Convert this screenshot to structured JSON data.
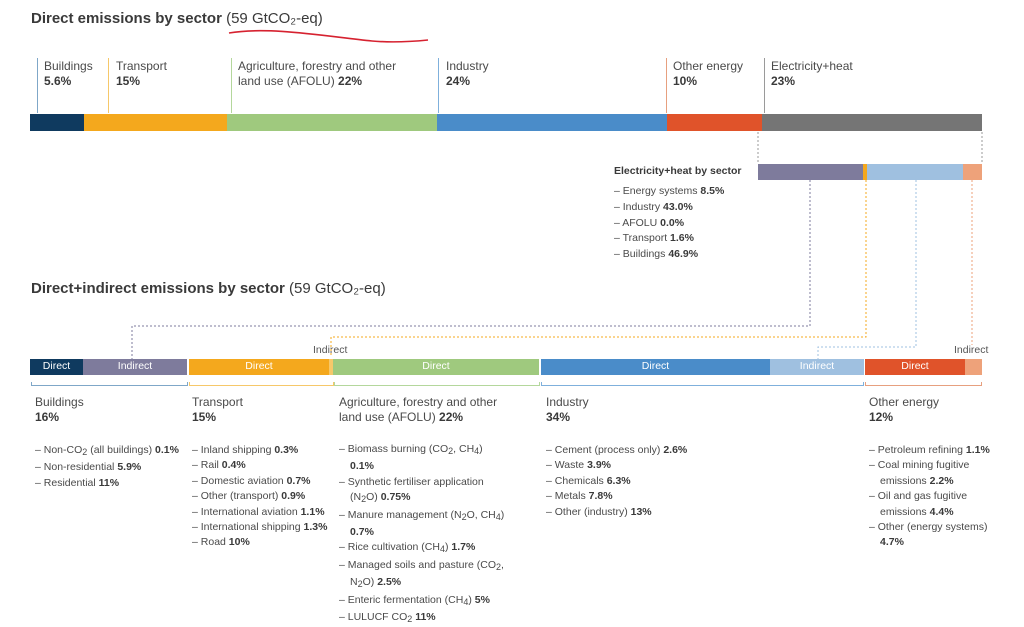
{
  "colors": {
    "buildings": "#0f3a5f",
    "buildings_indirect": "#7e7b9c",
    "transport": "#f4a81d",
    "afolu": "#9fc97e",
    "industry": "#4a8cc9",
    "industry_indirect": "#9fc0e0",
    "other_energy": "#e0532a",
    "other_energy_indirect": "#eea27a",
    "electricity_heat": "#757575",
    "buildings_lead": "#7fa7c8",
    "transport_lead": "#f6c86a",
    "afolu_lead": "#b4d79c",
    "industry_lead": "#7fb0dc",
    "other_energy_lead": "#e7a07f",
    "electricity_lead": "#9a9a9a",
    "annotation": "#d62230"
  },
  "chart_data": [
    {
      "type": "bar",
      "subtype": "stacked-horizontal-100",
      "title": "Direct emissions by sector",
      "title_qualifier": "(59 GtCO₂-eq)",
      "categories": [
        "Buildings",
        "Transport",
        "Agriculture, forestry and other land use (AFOLU)",
        "Industry",
        "Other energy",
        "Electricity+heat"
      ],
      "values": [
        5.6,
        15,
        22,
        24,
        10,
        23
      ],
      "value_labels": [
        "5.6%",
        "15%",
        "22%",
        "24%",
        "10%",
        "23%"
      ],
      "unit": "%"
    },
    {
      "type": "bar",
      "subtype": "stacked-horizontal-100",
      "title": "Electricity+heat by sector",
      "categories": [
        "Energy systems",
        "Industry",
        "AFOLU",
        "Transport",
        "Buildings"
      ],
      "values": [
        8.5,
        43.0,
        0.0,
        1.6,
        46.9
      ],
      "value_labels": [
        "8.5%",
        "43.0%",
        "0.0%",
        "1.6%",
        "46.9%"
      ],
      "unit": "%"
    },
    {
      "type": "bar",
      "subtype": "stacked-horizontal-100",
      "title": "Direct+indirect emissions by sector",
      "title_qualifier": "(59 GtCO₂-eq)",
      "segment_labels": {
        "direct": "Direct",
        "indirect": "Indirect"
      },
      "groups": [
        {
          "name": "Buildings",
          "value_label": "16%",
          "segments": [
            {
              "kind": "Direct",
              "value": 5.6
            },
            {
              "kind": "Indirect",
              "value": 10.8
            }
          ],
          "items": [
            {
              "label": "Non-CO₂ (all buildings)",
              "value": "0.1%"
            },
            {
              "label": "Non-residential",
              "value": "5.9%"
            },
            {
              "label": "Residential",
              "value": "11%"
            }
          ]
        },
        {
          "name": "Transport",
          "value_label": "15%",
          "segments": [
            {
              "kind": "Direct",
              "value": 14.3
            },
            {
              "kind": "Indirect",
              "value": 0.4
            }
          ],
          "items": [
            {
              "label": "Inland shipping",
              "value": "0.3%"
            },
            {
              "label": "Rail",
              "value": "0.4%"
            },
            {
              "label": "Domestic aviation",
              "value": "0.7%"
            },
            {
              "label": "Other (transport)",
              "value": "0.9%"
            },
            {
              "label": "International aviation",
              "value": "1.1%"
            },
            {
              "label": "International shipping",
              "value": "1.3%"
            },
            {
              "label": "Road",
              "value": "10%"
            }
          ]
        },
        {
          "name": "Agriculture, forestry and other land use (AFOLU)",
          "value_label": "22%",
          "segments": [
            {
              "kind": "Direct",
              "value": 20.5
            }
          ],
          "items": [
            {
              "label": "Biomass burning (CH₄, CO₂)",
              "value": "0.1%"
            },
            {
              "label": "Synthetic fertiliser application (N₂O)",
              "value": "0.75%"
            },
            {
              "label": "Manure management (N₂O, CH₄)",
              "value": "0.7%"
            },
            {
              "label": "Rice cultivation (CH₄)",
              "value": "1.7%"
            },
            {
              "label": "Managed soils and pasture (CO₂, N₂O)",
              "value": "2.5%"
            },
            {
              "label": "Enteric fermentation (CH₄)",
              "value": "5%"
            },
            {
              "label": "LULUCF CO₂",
              "value": "11%"
            }
          ]
        },
        {
          "name": "Industry",
          "value_label": "34%",
          "segments": [
            {
              "kind": "Direct",
              "value": 22.4
            },
            {
              "kind": "Indirect",
              "value": 9.4
            }
          ],
          "items": [
            {
              "label": "Cement (process only)",
              "value": "2.6%"
            },
            {
              "label": "Waste",
              "value": "3.9%"
            },
            {
              "label": "Chemicals",
              "value": "6.3%"
            },
            {
              "label": "Metals",
              "value": "7.8%"
            },
            {
              "label": "Other (industry)",
              "value": "13%"
            }
          ]
        },
        {
          "name": "Other energy",
          "value_label": "12%",
          "segments": [
            {
              "kind": "Direct",
              "value": 9.2
            },
            {
              "kind": "Indirect",
              "value": 1.5
            }
          ],
          "items": [
            {
              "label": "Petroleum refining",
              "value": "1.1%"
            },
            {
              "label": "Coal mining fugitive emissions",
              "value": "2.2%"
            },
            {
              "label": "Oil and gas fugitive emissions",
              "value": "4.4%"
            },
            {
              "label": "Other (energy systems)",
              "value": "4.7%"
            }
          ]
        }
      ]
    }
  ]
}
